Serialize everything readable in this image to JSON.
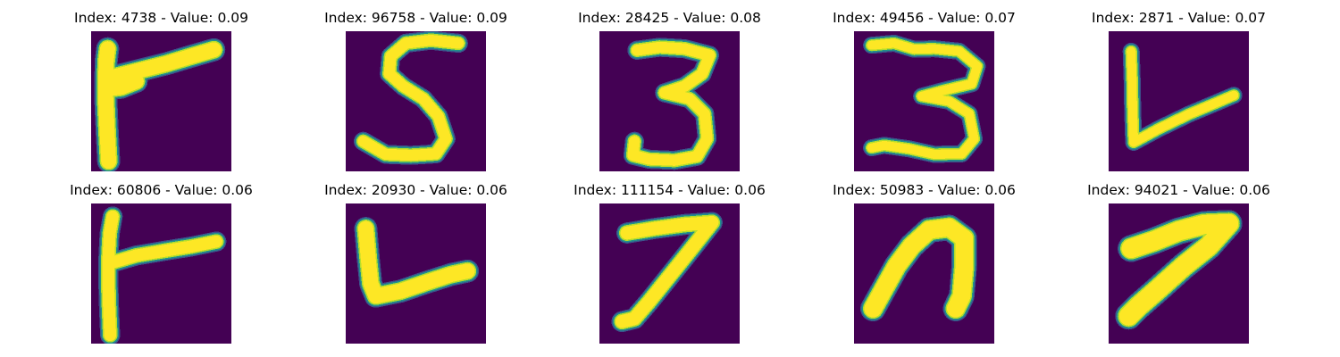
{
  "figure": {
    "colors": {
      "background": "#440154",
      "stroke_core": "#FDE725",
      "stroke_edge_1": "#B5DE2B",
      "stroke_edge_2": "#21918C",
      "stroke_edge_3": "#3B528B"
    },
    "panels": [
      {
        "title": "Index: 4738 - Value: 0.09",
        "glyph": "flag-stroke"
      },
      {
        "title": "Index: 96758 - Value: 0.09",
        "glyph": "digit-5"
      },
      {
        "title": "Index: 28425 - Value: 0.08",
        "glyph": "digit-3"
      },
      {
        "title": "Index: 49456 - Value: 0.07",
        "glyph": "digit-3-wide"
      },
      {
        "title": "Index: 2871 - Value: 0.07",
        "glyph": "v-stroke"
      },
      {
        "title": "Index: 60806 - Value: 0.06",
        "glyph": "flag-stroke-thin"
      },
      {
        "title": "Index: 20930 - Value: 0.06",
        "glyph": "v-stroke-bold"
      },
      {
        "title": "Index: 111154 - Value: 0.06",
        "glyph": "digit-7"
      },
      {
        "title": "Index: 50983 - Value: 0.06",
        "glyph": "hook-stroke"
      },
      {
        "title": "Index: 94021 - Value: 0.06",
        "glyph": "digit-7-slanted"
      }
    ]
  }
}
